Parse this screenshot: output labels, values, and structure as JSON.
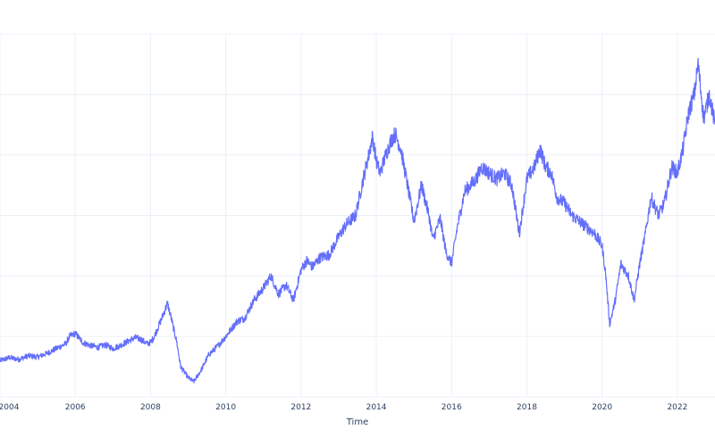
{
  "chart_data": {
    "type": "line",
    "title": "",
    "xlabel": "Time",
    "ylabel": "",
    "x_tick_labels": [
      "2004",
      "2006",
      "2008",
      "2010",
      "2012",
      "2014",
      "2016",
      "2018",
      "2020",
      "2022"
    ],
    "x_tick_values": [
      2004,
      2006,
      2008,
      2010,
      2012,
      2014,
      2016,
      2018,
      2020,
      2022
    ],
    "y_gridlines": [
      0,
      1,
      2,
      3,
      4,
      5,
      6
    ],
    "xlim": [
      2004.0,
      2023.0
    ],
    "ylim": [
      0,
      6
    ],
    "grid": true,
    "legend": "none",
    "color": "#636efa",
    "series": [
      {
        "x": [
          2004.0,
          2004.25,
          2004.5,
          2004.75,
          2005.0,
          2005.25,
          2005.5,
          2005.75,
          2005.85,
          2006.0,
          2006.2,
          2006.4,
          2006.6,
          2006.8,
          2007.0,
          2007.2,
          2007.4,
          2007.6,
          2007.75,
          2007.9,
          2008.0,
          2008.1,
          2008.3,
          2008.45,
          2008.55,
          2008.7,
          2008.8,
          2009.0,
          2009.15,
          2009.35,
          2009.55,
          2009.8,
          2010.0,
          2010.3,
          2010.5,
          2010.75,
          2011.0,
          2011.2,
          2011.4,
          2011.6,
          2011.8,
          2012.0,
          2012.15,
          2012.3,
          2012.5,
          2012.75,
          2013.0,
          2013.2,
          2013.45,
          2013.65,
          2013.8,
          2013.9,
          2014.0,
          2014.1,
          2014.25,
          2014.4,
          2014.5,
          2014.65,
          2014.8,
          2015.0,
          2015.2,
          2015.4,
          2015.5,
          2015.7,
          2015.85,
          2016.0,
          2016.15,
          2016.35,
          2016.5,
          2016.65,
          2016.8,
          2017.0,
          2017.2,
          2017.4,
          2017.6,
          2017.8,
          2018.0,
          2018.2,
          2018.35,
          2018.5,
          2018.65,
          2018.8,
          2019.0,
          2019.2,
          2019.4,
          2019.6,
          2019.8,
          2020.0,
          2020.1,
          2020.2,
          2020.35,
          2020.5,
          2020.7,
          2020.85,
          2021.0,
          2021.15,
          2021.3,
          2021.5,
          2021.65,
          2021.85,
          2022.0,
          2022.15,
          2022.3,
          2022.45,
          2022.55,
          2022.7,
          2022.85,
          2023.0
        ],
        "y": [
          0.6,
          0.65,
          0.62,
          0.68,
          0.66,
          0.72,
          0.8,
          0.88,
          1.0,
          1.05,
          0.9,
          0.85,
          0.82,
          0.86,
          0.8,
          0.85,
          0.92,
          0.98,
          0.95,
          0.88,
          0.9,
          1.0,
          1.3,
          1.55,
          1.3,
          0.9,
          0.5,
          0.32,
          0.25,
          0.45,
          0.7,
          0.85,
          1.0,
          1.25,
          1.3,
          1.6,
          1.8,
          2.0,
          1.7,
          1.85,
          1.6,
          2.1,
          2.25,
          2.15,
          2.3,
          2.35,
          2.65,
          2.85,
          3.0,
          3.6,
          4.0,
          4.3,
          3.9,
          3.7,
          4.0,
          4.25,
          4.35,
          4.1,
          3.6,
          2.9,
          3.5,
          3.0,
          2.6,
          2.95,
          2.4,
          2.2,
          2.8,
          3.4,
          3.5,
          3.6,
          3.8,
          3.7,
          3.6,
          3.7,
          3.5,
          2.7,
          3.6,
          3.8,
          4.1,
          3.8,
          3.7,
          3.3,
          3.2,
          3.0,
          2.9,
          2.8,
          2.7,
          2.5,
          2.0,
          1.2,
          1.6,
          2.2,
          2.0,
          1.6,
          2.2,
          2.7,
          3.3,
          3.0,
          3.2,
          3.8,
          3.7,
          4.1,
          4.7,
          5.0,
          5.5,
          4.6,
          5.0,
          4.5
        ]
      }
    ]
  }
}
